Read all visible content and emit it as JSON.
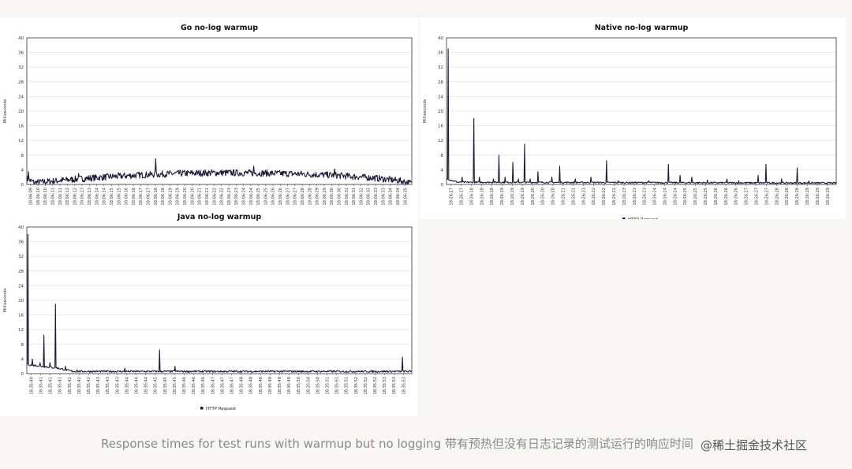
{
  "caption": "Response times for test runs with warmup but no logging 带有预热但没有日志记录的测试运行的响应时间",
  "watermark": "@稀土掘金技术社区",
  "colors": {
    "line": "#1b1b3a",
    "grid": "#e4e4e4",
    "axis": "#333333",
    "panel": "#ffffff"
  },
  "chart_data": [
    {
      "id": "go",
      "type": "line",
      "title": "Go no-log warmup",
      "ylabel": "Milliseconds",
      "xlabel": "",
      "ylim": [
        0,
        40
      ],
      "yticks": [
        0,
        4,
        8,
        12,
        16,
        20,
        24,
        28,
        32,
        36,
        40
      ],
      "grid": true,
      "legend": "",
      "x_ticks": [
        "18:06:09",
        "18:06:10",
        "18:06:10",
        "18:06:11",
        "18:06:11",
        "18:06:12",
        "18:06:12",
        "18:06:13",
        "18:06:13",
        "18:06:14",
        "18:06:14",
        "18:06:15",
        "18:06:15",
        "18:06:16",
        "18:06:16",
        "18:06:17",
        "18:06:17",
        "18:06:18",
        "18:06:18",
        "18:06:19",
        "18:06:19",
        "18:06:20",
        "18:06:20",
        "18:06:21",
        "18:06:21",
        "18:06:22",
        "18:06:22",
        "18:06:23",
        "18:06:23",
        "18:06:24",
        "18:06:24",
        "18:06:25",
        "18:06:25",
        "18:06:26",
        "18:06:26",
        "18:06:27",
        "18:06:27",
        "18:06:28",
        "18:06:28",
        "18:06:29",
        "18:06:29",
        "18:06:30",
        "18:06:30",
        "18:06:31",
        "18:06:31",
        "18:06:32",
        "18:06:32",
        "18:06:33",
        "18:06:33",
        "18:06:34",
        "18:06:34",
        "18:06:35"
      ],
      "series": [
        {
          "name": "",
          "profile": [
            [
              0,
              1.5
            ],
            [
              0.02,
              0.5
            ],
            [
              0.1,
              1.2
            ],
            [
              0.2,
              2.0
            ],
            [
              0.3,
              2.6
            ],
            [
              0.4,
              3.0
            ],
            [
              0.5,
              3.2
            ],
            [
              0.6,
              3.1
            ],
            [
              0.7,
              2.9
            ],
            [
              0.8,
              2.5
            ],
            [
              0.9,
              1.8
            ],
            [
              0.97,
              1.0
            ],
            [
              1,
              0.3
            ]
          ],
          "noise": 1.8,
          "spikes": [
            [
              0.005,
              3.5
            ],
            [
              0.135,
              3.0
            ],
            [
              0.335,
              7.0
            ],
            [
              0.59,
              5.0
            ],
            [
              0.8,
              4.2
            ]
          ]
        }
      ]
    },
    {
      "id": "native",
      "type": "line",
      "title": "Native no-log warmup",
      "ylabel": "Milliseconds",
      "xlabel": "",
      "ylim": [
        0,
        40
      ],
      "yticks": [
        0,
        4,
        8,
        12,
        16,
        20,
        24,
        28,
        32,
        36,
        40
      ],
      "grid": true,
      "legend": "HTTP Request",
      "x_ticks": [
        "18:26:17",
        "18:26:17",
        "18:26:18",
        "18:26:18",
        "18:26:18",
        "18:26:19",
        "18:26:19",
        "18:26:19",
        "18:26:20",
        "18:26:20",
        "18:26:20",
        "18:26:21",
        "18:26:21",
        "18:26:21",
        "18:26:22",
        "18:26:22",
        "18:26:22",
        "18:26:23",
        "18:26:23",
        "18:26:23",
        "18:26:24",
        "18:26:24",
        "18:26:24",
        "18:26:25",
        "18:26:25",
        "18:26:25",
        "18:26:26",
        "18:26:26",
        "18:26:26",
        "18:26:27",
        "18:26:27",
        "18:26:27",
        "18:26:28",
        "18:26:28",
        "18:26:28",
        "18:26:29",
        "18:26:29",
        "18:26:29"
      ],
      "series": [
        {
          "name": "HTTP Request",
          "profile": [
            [
              0,
              1.5
            ],
            [
              0.03,
              0.6
            ],
            [
              1,
              0.4
            ]
          ],
          "noise": 0.4,
          "spikes": [
            [
              0.005,
              37
            ],
            [
              0.04,
              2.0
            ],
            [
              0.07,
              18.0
            ],
            [
              0.085,
              2.0
            ],
            [
              0.12,
              1.5
            ],
            [
              0.135,
              8.0
            ],
            [
              0.15,
              2.0
            ],
            [
              0.17,
              6.0
            ],
            [
              0.185,
              1.5
            ],
            [
              0.2,
              11.0
            ],
            [
              0.215,
              1.5
            ],
            [
              0.235,
              3.5
            ],
            [
              0.27,
              2.0
            ],
            [
              0.29,
              5.0
            ],
            [
              0.33,
              1.5
            ],
            [
              0.37,
              2.0
            ],
            [
              0.41,
              6.5
            ],
            [
              0.44,
              1.0
            ],
            [
              0.52,
              1.0
            ],
            [
              0.57,
              5.5
            ],
            [
              0.6,
              2.5
            ],
            [
              0.63,
              2.0
            ],
            [
              0.67,
              1.2
            ],
            [
              0.72,
              1.5
            ],
            [
              0.75,
              1.0
            ],
            [
              0.8,
              2.5
            ],
            [
              0.82,
              5.5
            ],
            [
              0.86,
              1.5
            ],
            [
              0.9,
              4.5
            ],
            [
              0.93,
              1.0
            ]
          ]
        }
      ]
    },
    {
      "id": "java",
      "type": "line",
      "title": "Java no-log warmup",
      "ylabel": "Milliseconds",
      "xlabel": "",
      "ylim": [
        0,
        40
      ],
      "yticks": [
        0,
        4,
        8,
        12,
        16,
        20,
        24,
        28,
        32,
        36,
        40
      ],
      "grid": true,
      "legend": "HTTP Request",
      "x_ticks": [
        "18:35:40",
        "18:35:41",
        "18:35:41",
        "18:35:41",
        "18:35:42",
        "18:35:42",
        "18:35:42",
        "18:35:43",
        "18:35:43",
        "18:35:43",
        "18:35:44",
        "18:35:44",
        "18:35:44",
        "18:35:45",
        "18:35:45",
        "18:35:45",
        "18:35:46",
        "18:35:46",
        "18:35:46",
        "18:35:47",
        "18:35:47",
        "18:35:47",
        "18:35:48",
        "18:35:48",
        "18:35:48",
        "18:35:49",
        "18:35:49",
        "18:35:49",
        "18:35:50",
        "18:35:50",
        "18:35:50",
        "18:35:51",
        "18:35:51",
        "18:35:51",
        "18:35:52",
        "18:35:52",
        "18:35:52",
        "18:35:53",
        "18:35:53",
        "18:35:53"
      ],
      "series": [
        {
          "name": "HTTP Request",
          "profile": [
            [
              0,
              2.5
            ],
            [
              0.08,
              1.5
            ],
            [
              0.12,
              0.6
            ],
            [
              1,
              0.6
            ]
          ],
          "noise": 0.5,
          "spikes": [
            [
              0.003,
              38
            ],
            [
              0.015,
              4.0
            ],
            [
              0.035,
              3.0
            ],
            [
              0.045,
              10.5
            ],
            [
              0.06,
              3.0
            ],
            [
              0.075,
              19.0
            ],
            [
              0.1,
              2.0
            ],
            [
              0.13,
              1.0
            ],
            [
              0.255,
              1.5
            ],
            [
              0.345,
              6.5
            ],
            [
              0.385,
              2.0
            ],
            [
              0.975,
              4.5
            ]
          ]
        }
      ]
    }
  ]
}
